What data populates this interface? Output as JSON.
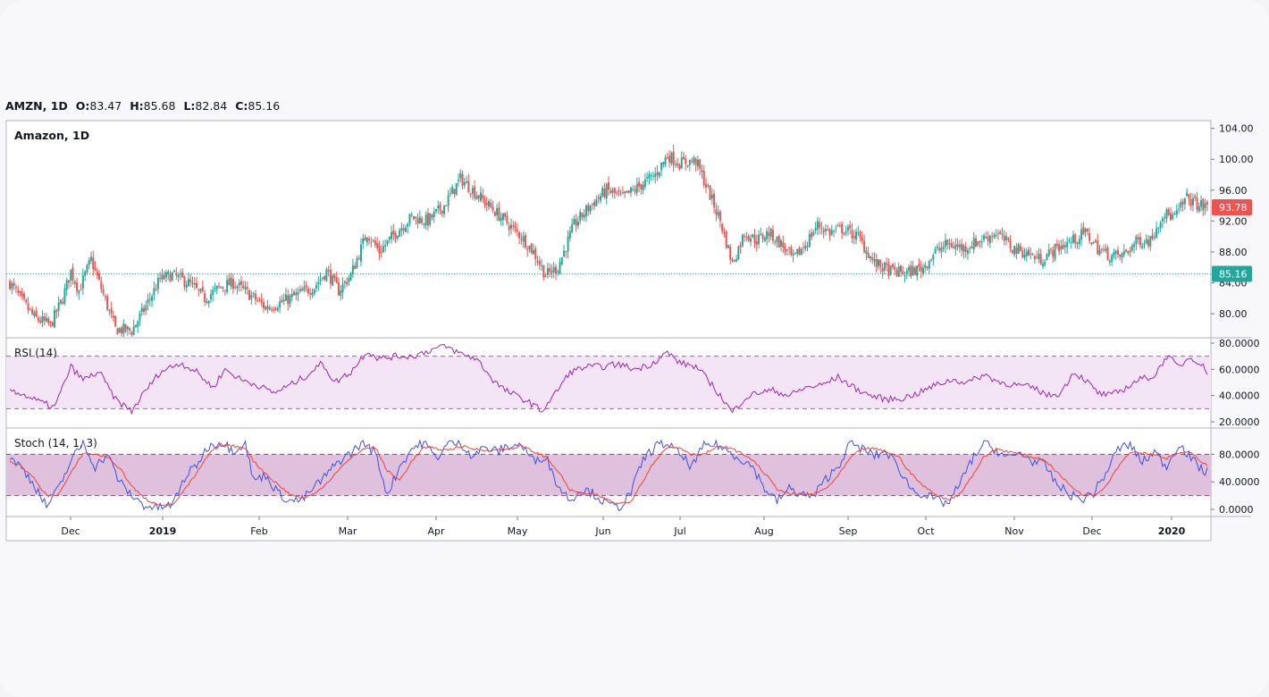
{
  "header": {
    "symbol": "AMZN, 1D",
    "open_label": "O:",
    "open": "83.47",
    "high_label": "H:",
    "high": "85.68",
    "low_label": "L:",
    "low": "82.84",
    "close_label": "C:",
    "close": "85.16"
  },
  "colors": {
    "up": "#26a69a",
    "down": "#ef5350",
    "rsi": "#9c27b0",
    "rsi_band": "#f3e5f5",
    "stoch_k": "#3f51e5",
    "stoch_d": "#f44336",
    "stoch_band": "#dfc0dd"
  },
  "chart_data": [
    {
      "type": "candlestick",
      "title": "Amazon, 1D",
      "ylim": [
        77,
        105
      ],
      "y_ticks": [
        "104.00",
        "100.00",
        "96.00",
        "92.00",
        "88.00",
        "84.00",
        "80.00"
      ],
      "last_price_label": "93.78",
      "reference_line_label": "85.16",
      "x_labels": [
        "Dec",
        "2019",
        "Feb",
        "Mar",
        "Apr",
        "May",
        "Jun",
        "Jul",
        "Aug",
        "Sep",
        "Oct",
        "Nov",
        "Dec",
        "2020"
      ],
      "x_labels_bold": [
        "2019",
        "2020"
      ],
      "close_anchors": [
        [
          0,
          84
        ],
        [
          5,
          82
        ],
        [
          12,
          79.5
        ],
        [
          20,
          78.5
        ],
        [
          26,
          82
        ],
        [
          30,
          85.5
        ],
        [
          34,
          83
        ],
        [
          40,
          87
        ],
        [
          46,
          82.5
        ],
        [
          52,
          78
        ],
        [
          60,
          77.8
        ],
        [
          66,
          80.5
        ],
        [
          74,
          84.5
        ],
        [
          80,
          85
        ],
        [
          88,
          84
        ],
        [
          96,
          82
        ],
        [
          104,
          83.5
        ],
        [
          110,
          84
        ],
        [
          118,
          82.5
        ],
        [
          126,
          80.8
        ],
        [
          134,
          81.5
        ],
        [
          142,
          82.5
        ],
        [
          150,
          83.5
        ],
        [
          156,
          85.5
        ],
        [
          162,
          83
        ],
        [
          168,
          85
        ],
        [
          176,
          90.5
        ],
        [
          182,
          88
        ],
        [
          190,
          90.5
        ],
        [
          198,
          92.5
        ],
        [
          206,
          92
        ],
        [
          214,
          94
        ],
        [
          222,
          97.5
        ],
        [
          230,
          95.5
        ],
        [
          238,
          93.5
        ],
        [
          244,
          92
        ],
        [
          252,
          90
        ],
        [
          258,
          88
        ],
        [
          264,
          85
        ],
        [
          270,
          86
        ],
        [
          278,
          91.5
        ],
        [
          286,
          94
        ],
        [
          294,
          96
        ],
        [
          302,
          95
        ],
        [
          310,
          96.5
        ],
        [
          318,
          98
        ],
        [
          324,
          100.5
        ],
        [
          330,
          99.5
        ],
        [
          338,
          99.8
        ],
        [
          344,
          96
        ],
        [
          350,
          92
        ],
        [
          356,
          86.5
        ],
        [
          362,
          90.5
        ],
        [
          368,
          89.5
        ],
        [
          374,
          90.5
        ],
        [
          380,
          89
        ],
        [
          386,
          87
        ],
        [
          392,
          89
        ],
        [
          398,
          91.5
        ],
        [
          404,
          90.5
        ],
        [
          410,
          91
        ],
        [
          418,
          90
        ],
        [
          426,
          86.5
        ],
        [
          434,
          85.5
        ],
        [
          442,
          85.3
        ],
        [
          450,
          86
        ],
        [
          456,
          88
        ],
        [
          462,
          89
        ],
        [
          470,
          88.5
        ],
        [
          478,
          89.5
        ],
        [
          486,
          90.5
        ],
        [
          494,
          88.5
        ],
        [
          500,
          88
        ],
        [
          508,
          87
        ],
        [
          516,
          88.5
        ],
        [
          524,
          89.5
        ],
        [
          530,
          90.5
        ],
        [
          536,
          88.5
        ],
        [
          542,
          87.5
        ],
        [
          548,
          87.5
        ],
        [
          556,
          89.5
        ],
        [
          562,
          89.5
        ],
        [
          568,
          93
        ],
        [
          574,
          92.5
        ],
        [
          580,
          95
        ],
        [
          586,
          94
        ],
        [
          590,
          93.8
        ]
      ],
      "candle_count": 591,
      "pre_dec_candles": 10
    },
    {
      "type": "line",
      "title": "RSI (14)",
      "ylim": [
        20,
        80
      ],
      "y_ticks": [
        "80.0000",
        "60.0000",
        "40.0000",
        "20.0000"
      ],
      "band": [
        30,
        70
      ],
      "anchors": [
        [
          0,
          45
        ],
        [
          15,
          35
        ],
        [
          22,
          31
        ],
        [
          30,
          62
        ],
        [
          36,
          52
        ],
        [
          44,
          58
        ],
        [
          52,
          37
        ],
        [
          60,
          28
        ],
        [
          66,
          42
        ],
        [
          74,
          58
        ],
        [
          84,
          65
        ],
        [
          92,
          58
        ],
        [
          100,
          46
        ],
        [
          106,
          60
        ],
        [
          114,
          52
        ],
        [
          122,
          48
        ],
        [
          130,
          42
        ],
        [
          138,
          48
        ],
        [
          146,
          55
        ],
        [
          154,
          65
        ],
        [
          160,
          50
        ],
        [
          168,
          58
        ],
        [
          176,
          74
        ],
        [
          182,
          68
        ],
        [
          190,
          70
        ],
        [
          198,
          70
        ],
        [
          206,
          74
        ],
        [
          214,
          78
        ],
        [
          222,
          72
        ],
        [
          230,
          68
        ],
        [
          238,
          52
        ],
        [
          244,
          44
        ],
        [
          252,
          38
        ],
        [
          258,
          33
        ],
        [
          262,
          28
        ],
        [
          268,
          40
        ],
        [
          276,
          58
        ],
        [
          284,
          62
        ],
        [
          292,
          62
        ],
        [
          300,
          64
        ],
        [
          308,
          60
        ],
        [
          316,
          64
        ],
        [
          324,
          73
        ],
        [
          330,
          65
        ],
        [
          338,
          62
        ],
        [
          344,
          52
        ],
        [
          350,
          40
        ],
        [
          356,
          27
        ],
        [
          362,
          38
        ],
        [
          368,
          42
        ],
        [
          376,
          44
        ],
        [
          384,
          40
        ],
        [
          392,
          46
        ],
        [
          400,
          48
        ],
        [
          408,
          54
        ],
        [
          416,
          46
        ],
        [
          424,
          40
        ],
        [
          432,
          37
        ],
        [
          440,
          38
        ],
        [
          448,
          42
        ],
        [
          456,
          48
        ],
        [
          464,
          52
        ],
        [
          472,
          50
        ],
        [
          480,
          56
        ],
        [
          488,
          50
        ],
        [
          496,
          48
        ],
        [
          504,
          46
        ],
        [
          512,
          40
        ],
        [
          518,
          42
        ],
        [
          524,
          58
        ],
        [
          530,
          52
        ],
        [
          536,
          42
        ],
        [
          542,
          40
        ],
        [
          548,
          44
        ],
        [
          556,
          52
        ],
        [
          564,
          55
        ],
        [
          570,
          70
        ],
        [
          576,
          62
        ],
        [
          582,
          70
        ],
        [
          588,
          62
        ],
        [
          590,
          58
        ]
      ]
    },
    {
      "type": "line",
      "title": "Stoch (14, 1, 3)",
      "ylim": [
        0,
        100
      ],
      "y_ticks": [
        "80.0000",
        "40.0000",
        "0.0000"
      ],
      "band": [
        20,
        80
      ],
      "series_k": [
        [
          0,
          76
        ],
        [
          6,
          60
        ],
        [
          12,
          36
        ],
        [
          18,
          4
        ],
        [
          24,
          30
        ],
        [
          30,
          70
        ],
        [
          36,
          97
        ],
        [
          42,
          62
        ],
        [
          48,
          80
        ],
        [
          54,
          40
        ],
        [
          60,
          20
        ],
        [
          66,
          6
        ],
        [
          72,
          2
        ],
        [
          80,
          6
        ],
        [
          86,
          45
        ],
        [
          92,
          65
        ],
        [
          98,
          92
        ],
        [
          104,
          98
        ],
        [
          110,
          86
        ],
        [
          116,
          96
        ],
        [
          120,
          42
        ],
        [
          126,
          50
        ],
        [
          132,
          24
        ],
        [
          138,
          12
        ],
        [
          144,
          14
        ],
        [
          150,
          32
        ],
        [
          156,
          50
        ],
        [
          162,
          70
        ],
        [
          168,
          82
        ],
        [
          174,
          98
        ],
        [
          180,
          82
        ],
        [
          186,
          22
        ],
        [
          192,
          62
        ],
        [
          198,
          88
        ],
        [
          204,
          98
        ],
        [
          210,
          74
        ],
        [
          216,
          96
        ],
        [
          222,
          96
        ],
        [
          228,
          78
        ],
        [
          234,
          90
        ],
        [
          240,
          84
        ],
        [
          246,
          92
        ],
        [
          252,
          94
        ],
        [
          258,
          70
        ],
        [
          264,
          78
        ],
        [
          270,
          34
        ],
        [
          276,
          14
        ],
        [
          282,
          30
        ],
        [
          288,
          22
        ],
        [
          294,
          8
        ],
        [
          300,
          2
        ],
        [
          306,
          24
        ],
        [
          312,
          72
        ],
        [
          318,
          92
        ],
        [
          324,
          96
        ],
        [
          330,
          80
        ],
        [
          336,
          62
        ],
        [
          342,
          92
        ],
        [
          348,
          95
        ],
        [
          354,
          84
        ],
        [
          360,
          74
        ],
        [
          366,
          62
        ],
        [
          372,
          30
        ],
        [
          378,
          12
        ],
        [
          384,
          30
        ],
        [
          390,
          22
        ],
        [
          396,
          18
        ],
        [
          402,
          44
        ],
        [
          408,
          62
        ],
        [
          414,
          96
        ],
        [
          420,
          88
        ],
        [
          426,
          78
        ],
        [
          432,
          84
        ],
        [
          438,
          60
        ],
        [
          444,
          30
        ],
        [
          450,
          22
        ],
        [
          456,
          14
        ],
        [
          462,
          8
        ],
        [
          468,
          36
        ],
        [
          474,
          72
        ],
        [
          480,
          96
        ],
        [
          486,
          86
        ],
        [
          492,
          74
        ],
        [
          498,
          82
        ],
        [
          504,
          70
        ],
        [
          510,
          64
        ],
        [
          516,
          36
        ],
        [
          522,
          22
        ],
        [
          528,
          14
        ],
        [
          534,
          24
        ],
        [
          540,
          52
        ],
        [
          546,
          88
        ],
        [
          552,
          94
        ],
        [
          558,
          68
        ],
        [
          564,
          84
        ],
        [
          570,
          62
        ],
        [
          576,
          96
        ],
        [
          582,
          74
        ],
        [
          588,
          56
        ],
        [
          590,
          54
        ]
      ],
      "series_d": [
        [
          0,
          70
        ],
        [
          6,
          62
        ],
        [
          12,
          44
        ],
        [
          18,
          20
        ],
        [
          24,
          22
        ],
        [
          30,
          52
        ],
        [
          36,
          82
        ],
        [
          42,
          80
        ],
        [
          48,
          76
        ],
        [
          54,
          60
        ],
        [
          60,
          34
        ],
        [
          66,
          16
        ],
        [
          72,
          8
        ],
        [
          80,
          6
        ],
        [
          86,
          28
        ],
        [
          92,
          52
        ],
        [
          98,
          80
        ],
        [
          104,
          94
        ],
        [
          110,
          92
        ],
        [
          116,
          90
        ],
        [
          120,
          70
        ],
        [
          126,
          52
        ],
        [
          132,
          36
        ],
        [
          138,
          22
        ],
        [
          144,
          16
        ],
        [
          150,
          22
        ],
        [
          156,
          38
        ],
        [
          162,
          58
        ],
        [
          168,
          74
        ],
        [
          174,
          88
        ],
        [
          180,
          90
        ],
        [
          186,
          56
        ],
        [
          192,
          42
        ],
        [
          198,
          70
        ],
        [
          204,
          90
        ],
        [
          210,
          88
        ],
        [
          216,
          86
        ],
        [
          222,
          92
        ],
        [
          228,
          88
        ],
        [
          234,
          86
        ],
        [
          240,
          86
        ],
        [
          246,
          88
        ],
        [
          252,
          92
        ],
        [
          258,
          84
        ],
        [
          264,
          76
        ],
        [
          270,
          56
        ],
        [
          276,
          28
        ],
        [
          282,
          22
        ],
        [
          288,
          22
        ],
        [
          294,
          14
        ],
        [
          300,
          8
        ],
        [
          306,
          12
        ],
        [
          312,
          42
        ],
        [
          318,
          72
        ],
        [
          324,
          90
        ],
        [
          330,
          90
        ],
        [
          336,
          80
        ],
        [
          342,
          80
        ],
        [
          348,
          90
        ],
        [
          354,
          90
        ],
        [
          360,
          82
        ],
        [
          366,
          72
        ],
        [
          372,
          52
        ],
        [
          378,
          30
        ],
        [
          384,
          22
        ],
        [
          390,
          22
        ],
        [
          396,
          22
        ],
        [
          402,
          30
        ],
        [
          408,
          48
        ],
        [
          414,
          74
        ],
        [
          420,
          88
        ],
        [
          426,
          88
        ],
        [
          432,
          84
        ],
        [
          438,
          76
        ],
        [
          444,
          52
        ],
        [
          450,
          34
        ],
        [
          456,
          22
        ],
        [
          462,
          14
        ],
        [
          468,
          22
        ],
        [
          474,
          48
        ],
        [
          480,
          76
        ],
        [
          486,
          88
        ],
        [
          492,
          84
        ],
        [
          498,
          80
        ],
        [
          504,
          76
        ],
        [
          510,
          72
        ],
        [
          516,
          54
        ],
        [
          522,
          36
        ],
        [
          528,
          22
        ],
        [
          534,
          20
        ],
        [
          540,
          34
        ],
        [
          546,
          62
        ],
        [
          552,
          84
        ],
        [
          558,
          82
        ],
        [
          564,
          80
        ],
        [
          570,
          74
        ],
        [
          576,
          82
        ],
        [
          582,
          82
        ],
        [
          588,
          68
        ],
        [
          590,
          64
        ]
      ]
    }
  ]
}
